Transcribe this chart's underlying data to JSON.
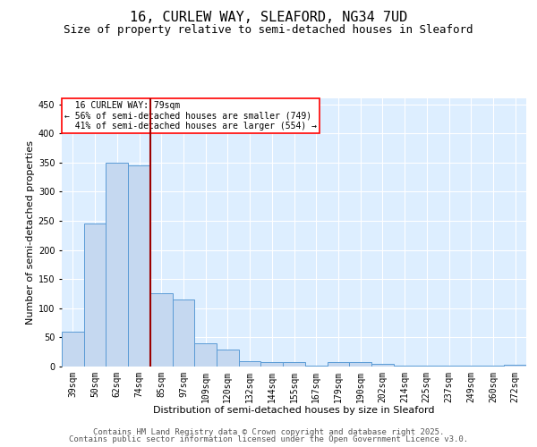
{
  "title": "16, CURLEW WAY, SLEAFORD, NG34 7UD",
  "subtitle": "Size of property relative to semi-detached houses in Sleaford",
  "xlabel": "Distribution of semi-detached houses by size in Sleaford",
  "ylabel": "Number of semi-detached properties",
  "categories": [
    "39sqm",
    "50sqm",
    "62sqm",
    "74sqm",
    "85sqm",
    "97sqm",
    "109sqm",
    "120sqm",
    "132sqm",
    "144sqm",
    "155sqm",
    "167sqm",
    "179sqm",
    "190sqm",
    "202sqm",
    "214sqm",
    "225sqm",
    "237sqm",
    "249sqm",
    "260sqm",
    "272sqm"
  ],
  "values": [
    60,
    245,
    350,
    345,
    125,
    115,
    40,
    29,
    9,
    7,
    8,
    2,
    7,
    7,
    4,
    1,
    2,
    1,
    1,
    1,
    3
  ],
  "bar_color": "#c5d8f0",
  "bar_edge_color": "#5b9bd5",
  "vline_x": 3.5,
  "vline_color": "#9b0000",
  "property_label": "16 CURLEW WAY: 79sqm",
  "pct_smaller": "56% of semi-detached houses are smaller (749)",
  "pct_larger": "41% of semi-detached houses are larger (554)",
  "ylim": [
    0,
    460
  ],
  "yticks": [
    0,
    50,
    100,
    150,
    200,
    250,
    300,
    350,
    400,
    450
  ],
  "background_color": "#ddeeff",
  "footer_line1": "Contains HM Land Registry data © Crown copyright and database right 2025.",
  "footer_line2": "Contains public sector information licensed under the Open Government Licence v3.0.",
  "title_fontsize": 11,
  "subtitle_fontsize": 9,
  "axis_label_fontsize": 8,
  "tick_fontsize": 7,
  "annotation_fontsize": 7,
  "footer_fontsize": 6.5
}
